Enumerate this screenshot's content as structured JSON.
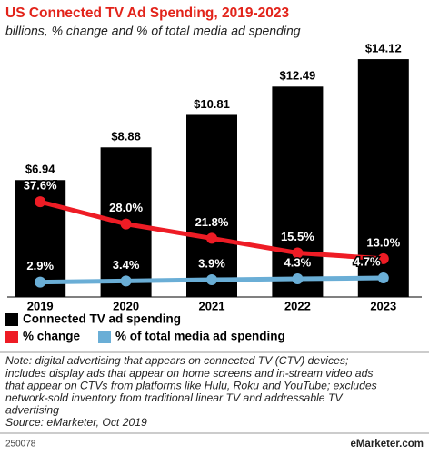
{
  "chart_data": {
    "type": "bar",
    "title": "US Connected TV Ad Spending, 2019-2023",
    "subtitle": "billions, % change and % of total media ad spending",
    "categories": [
      "2019",
      "2020",
      "2021",
      "2022",
      "2023"
    ],
    "series": [
      {
        "name": "Connected TV ad spending",
        "type": "bar",
        "color": "#000000",
        "values": [
          6.94,
          8.88,
          10.81,
          12.49,
          14.12
        ],
        "value_labels": [
          "$6.94",
          "$8.88",
          "$10.81",
          "$12.49",
          "$14.12"
        ]
      },
      {
        "name": "% change",
        "type": "line",
        "color": "#ee1c25",
        "values": [
          37.6,
          28.0,
          21.8,
          15.5,
          13.0
        ],
        "value_labels": [
          "37.6%",
          "28.0%",
          "21.8%",
          "15.5%",
          "13.0%"
        ]
      },
      {
        "name": "% of total media ad spending",
        "type": "line",
        "color": "#6aaed6",
        "values": [
          2.9,
          3.4,
          3.9,
          4.3,
          4.7
        ],
        "value_labels": [
          "2.9%",
          "3.4%",
          "3.9%",
          "4.3%",
          "4.7%"
        ]
      }
    ]
  },
  "footer": {
    "note": [
      "Note: digital advertising that appears on connected TV (CTV) devices;",
      "includes display ads that appear on home screens and in-stream video ads",
      "that appear on CTVs from platforms like Hulu, Roku and YouTube; excludes",
      "network-sold inventory from traditional linear TV and addressable TV",
      "advertising"
    ],
    "source": "Source: eMarketer, Oct 2019",
    "id": "250078",
    "brand": "eMarketer.com"
  }
}
